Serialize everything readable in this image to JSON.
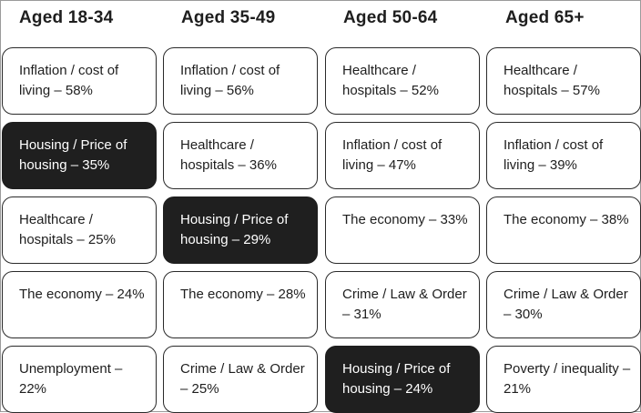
{
  "columns": [
    {
      "header": "Aged 18-34",
      "cards": [
        {
          "text": "Inflation / cost of living – 58%",
          "highlight": false
        },
        {
          "text": "Housing / Price of housing – 35%",
          "highlight": true
        },
        {
          "text": "Healthcare / hospitals – 25%",
          "highlight": false
        },
        {
          "text": "The economy – 24%",
          "highlight": false
        },
        {
          "text": "Unemployment – 22%",
          "highlight": false
        }
      ]
    },
    {
      "header": "Aged 35-49",
      "cards": [
        {
          "text": "Inflation / cost of living – 56%",
          "highlight": false
        },
        {
          "text": "Healthcare / hospitals – 36%",
          "highlight": false
        },
        {
          "text": "Housing / Price of housing – 29%",
          "highlight": true
        },
        {
          "text": "The economy – 28%",
          "highlight": false
        },
        {
          "text": "Crime / Law & Order – 25%",
          "highlight": false
        }
      ]
    },
    {
      "header": "Aged 50-64",
      "cards": [
        {
          "text": "Healthcare / hospitals – 52%",
          "highlight": false
        },
        {
          "text": "Inflation / cost of living – 47%",
          "highlight": false
        },
        {
          "text": "The economy – 33%",
          "highlight": false
        },
        {
          "text": "Crime / Law & Order – 31%",
          "highlight": false
        },
        {
          "text": "Housing / Price of housing – 24%",
          "highlight": true
        }
      ]
    },
    {
      "header": "Aged 65+",
      "cards": [
        {
          "text": "Healthcare / hospitals – 57%",
          "highlight": false
        },
        {
          "text": "Inflation / cost of living – 39%",
          "highlight": false
        },
        {
          "text": "The economy – 38%",
          "highlight": false
        },
        {
          "text": "Crime / Law & Order – 30%",
          "highlight": false
        },
        {
          "text": "Poverty / inequality – 21%",
          "highlight": false
        }
      ]
    }
  ]
}
